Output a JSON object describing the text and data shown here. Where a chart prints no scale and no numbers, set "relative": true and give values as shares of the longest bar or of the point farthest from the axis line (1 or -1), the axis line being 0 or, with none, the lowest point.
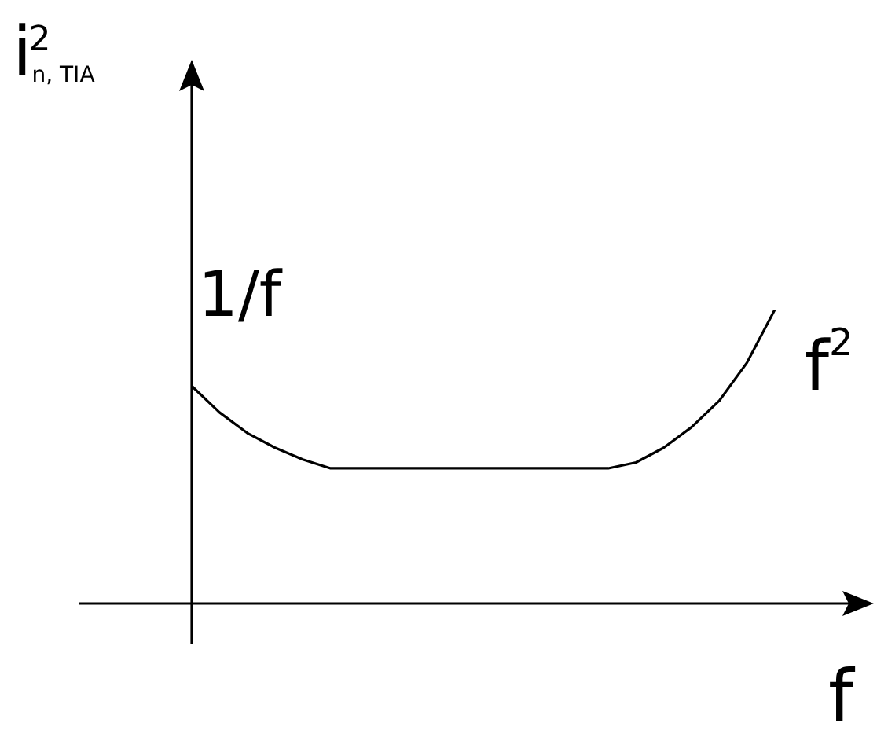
{
  "chart_data": {
    "type": "line",
    "relative": true,
    "xlabel": "f",
    "ylabel": "i$^{2}$$_{n, TIA}$",
    "annotations": [
      "1/f",
      "f$^{2}$"
    ],
    "color": "#000000",
    "marker": "none",
    "categories": [
      null,
      null,
      null,
      null,
      null,
      null,
      null,
      null,
      null,
      null,
      null,
      null,
      null,
      null,
      null,
      null,
      null,
      null,
      null,
      null,
      null,
      null
    ],
    "values": [
      0.74,
      0.65,
      0.58,
      0.53,
      0.49,
      0.46,
      0.46,
      0.46,
      0.46,
      0.46,
      0.46,
      0.46,
      0.46,
      0.46,
      0.46,
      0.46,
      0.48,
      0.53,
      0.6,
      0.69,
      0.82,
      1
    ]
  }
}
